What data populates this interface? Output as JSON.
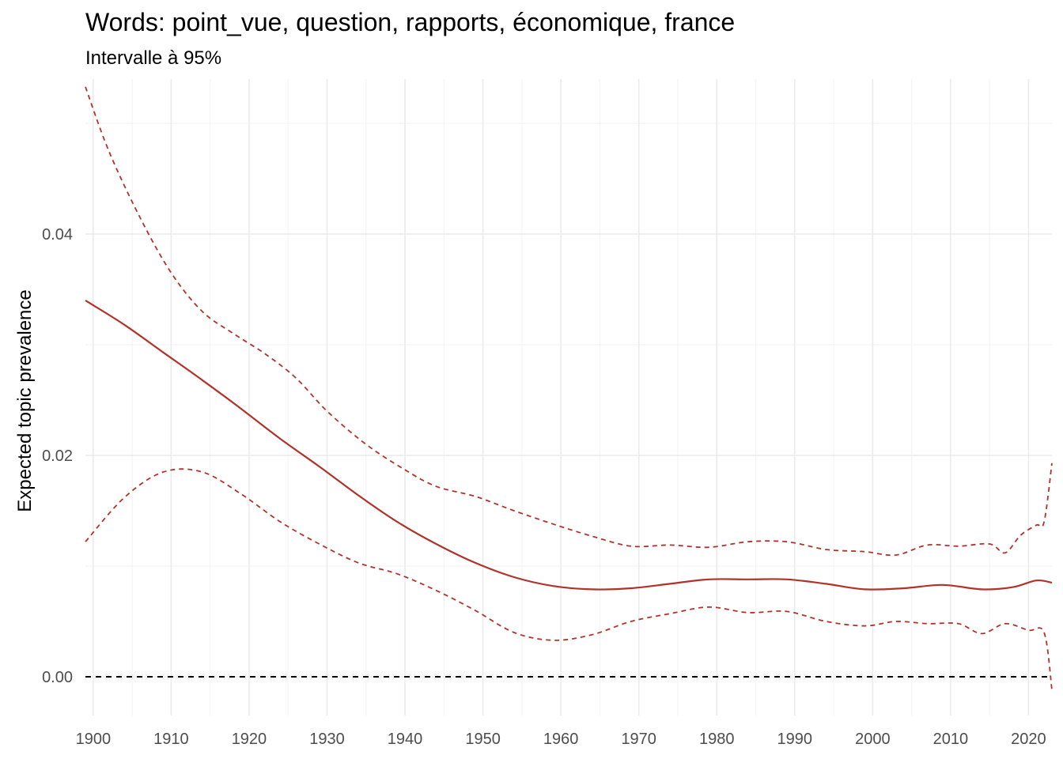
{
  "chart_data": {
    "type": "line",
    "title": "Words: point_vue, question, rapports, économique, france",
    "subtitle": "Intervalle à 95%",
    "xlabel": "",
    "ylabel": "Expected topic prevalence",
    "xlim": [
      1899,
      2023
    ],
    "ylim": [
      -0.0035,
      0.054
    ],
    "x_ticks": [
      1900,
      1910,
      1920,
      1930,
      1940,
      1950,
      1960,
      1970,
      1980,
      1990,
      2000,
      2010,
      2020
    ],
    "y_ticks": [
      0.0,
      0.02,
      0.04
    ],
    "y_tick_labels": [
      "0.00",
      "0.02",
      "0.04"
    ],
    "grid": true,
    "reference_line": {
      "y": 0.0,
      "style": "dashed",
      "color": "#000000"
    },
    "colors": {
      "series": "#b2322b"
    },
    "series": [
      {
        "style": "solid",
        "points": [
          [
            1899,
            0.034
          ],
          [
            1904,
            0.0318
          ],
          [
            1909,
            0.0293
          ],
          [
            1914,
            0.0268
          ],
          [
            1919,
            0.0242
          ],
          [
            1924,
            0.0215
          ],
          [
            1929,
            0.019
          ],
          [
            1934,
            0.0164
          ],
          [
            1939,
            0.014
          ],
          [
            1944,
            0.012
          ],
          [
            1949,
            0.0103
          ],
          [
            1954,
            0.009
          ],
          [
            1959,
            0.0082
          ],
          [
            1964,
            0.0079
          ],
          [
            1969,
            0.008
          ],
          [
            1974,
            0.0084
          ],
          [
            1979,
            0.0088
          ],
          [
            1984,
            0.0088
          ],
          [
            1989,
            0.0088
          ],
          [
            1994,
            0.0084
          ],
          [
            1999,
            0.0079
          ],
          [
            2004,
            0.008
          ],
          [
            2009,
            0.0083
          ],
          [
            2014,
            0.0079
          ],
          [
            2018,
            0.0081
          ],
          [
            2021,
            0.0087
          ],
          [
            2023,
            0.0085
          ]
        ]
      },
      {
        "style": "dashed",
        "points": [
          [
            1899,
            0.0533
          ],
          [
            1902,
            0.0475
          ],
          [
            1906,
            0.0415
          ],
          [
            1910,
            0.0365
          ],
          [
            1914,
            0.033
          ],
          [
            1918,
            0.031
          ],
          [
            1922,
            0.0292
          ],
          [
            1926,
            0.027
          ],
          [
            1930,
            0.024
          ],
          [
            1935,
            0.021
          ],
          [
            1940,
            0.0187
          ],
          [
            1944,
            0.0172
          ],
          [
            1949,
            0.0163
          ],
          [
            1954,
            0.015
          ],
          [
            1959,
            0.0138
          ],
          [
            1964,
            0.0127
          ],
          [
            1969,
            0.0118
          ],
          [
            1974,
            0.0119
          ],
          [
            1979,
            0.0117
          ],
          [
            1984,
            0.0122
          ],
          [
            1989,
            0.0122
          ],
          [
            1994,
            0.0115
          ],
          [
            1999,
            0.0113
          ],
          [
            2003,
            0.011
          ],
          [
            2007,
            0.0119
          ],
          [
            2011,
            0.0118
          ],
          [
            2015,
            0.012
          ],
          [
            2017,
            0.0112
          ],
          [
            2019,
            0.0128
          ],
          [
            2021,
            0.0137
          ],
          [
            2022,
            0.014
          ],
          [
            2023,
            0.0193
          ]
        ]
      },
      {
        "style": "dashed",
        "points": [
          [
            1899,
            0.0122
          ],
          [
            1904,
            0.0162
          ],
          [
            1909,
            0.0185
          ],
          [
            1914,
            0.0185
          ],
          [
            1919,
            0.0165
          ],
          [
            1924,
            0.014
          ],
          [
            1929,
            0.012
          ],
          [
            1934,
            0.0103
          ],
          [
            1939,
            0.0093
          ],
          [
            1944,
            0.0078
          ],
          [
            1949,
            0.006
          ],
          [
            1954,
            0.004
          ],
          [
            1959,
            0.0033
          ],
          [
            1964,
            0.0038
          ],
          [
            1969,
            0.005
          ],
          [
            1974,
            0.0057
          ],
          [
            1979,
            0.0063
          ],
          [
            1984,
            0.0058
          ],
          [
            1989,
            0.0059
          ],
          [
            1994,
            0.005
          ],
          [
            1999,
            0.0046
          ],
          [
            2003,
            0.005
          ],
          [
            2007,
            0.0048
          ],
          [
            2011,
            0.0048
          ],
          [
            2014,
            0.0039
          ],
          [
            2017,
            0.0048
          ],
          [
            2020,
            0.0042
          ],
          [
            2022,
            0.004
          ],
          [
            2023,
            -0.0012
          ]
        ]
      }
    ]
  }
}
